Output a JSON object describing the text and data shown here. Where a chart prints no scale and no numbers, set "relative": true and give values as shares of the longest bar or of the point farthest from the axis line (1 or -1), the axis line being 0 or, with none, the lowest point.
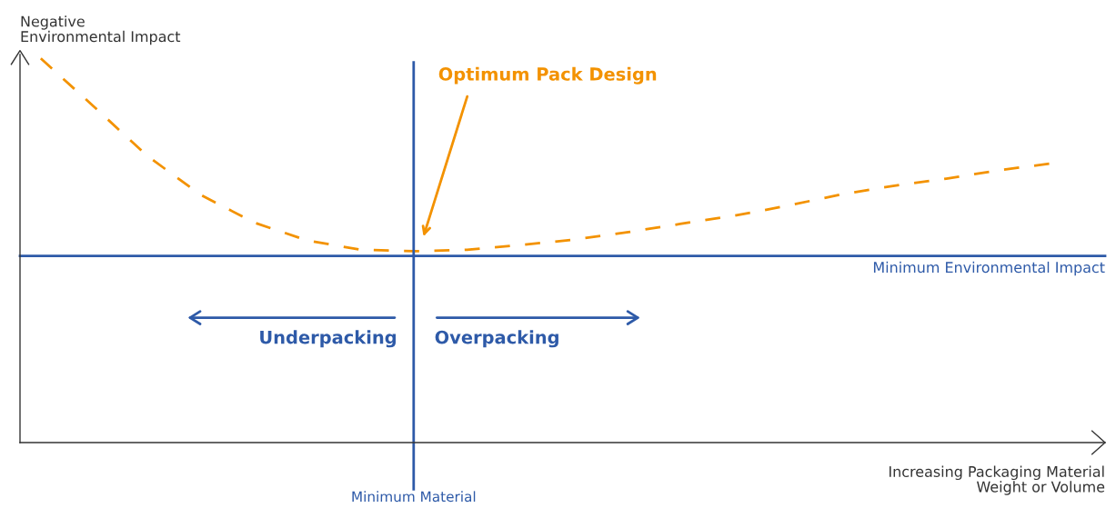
{
  "chart_data": {
    "type": "line",
    "relative": true,
    "xlabel": "Increasing Packaging Material\nWeight or Volume",
    "ylabel": "Negative\nEnvironmental Impact",
    "categories": [
      null,
      null,
      null,
      null,
      null,
      null,
      null,
      null,
      null,
      null,
      null,
      null,
      null,
      null,
      null,
      null,
      null,
      null,
      null,
      null
    ],
    "series": [
      {
        "color": "#f39200",
        "values": [
          1.0,
          0.874,
          0.746,
          0.645,
          0.573,
          0.526,
          0.502,
          0.498,
          0.502,
          0.514,
          0.528,
          0.547,
          0.569,
          0.59,
          0.616,
          0.645,
          0.668,
          0.687,
          0.709,
          0.727
        ]
      }
    ],
    "line_style": "dashed",
    "marker": "none",
    "legend": false,
    "ref_lines": [
      {
        "axis": "y",
        "value": 0.486,
        "label": "Minimum Environmental Impact",
        "color": "#2e5aa8"
      }
    ],
    "annotations": [
      "Optimum Pack Design",
      "Underpacking",
      "Overpacking",
      "Minimum Material"
    ]
  }
}
